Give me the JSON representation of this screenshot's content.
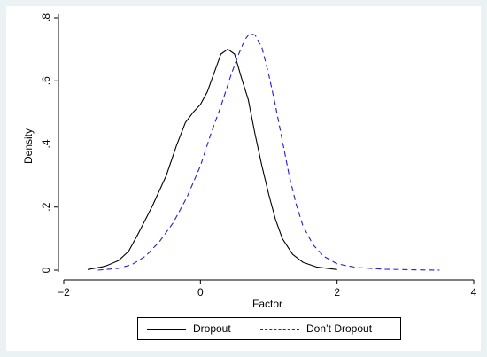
{
  "chart_data": {
    "type": "line",
    "title": "",
    "xlabel": "Factor",
    "ylabel": "Density",
    "xlim": [
      -2,
      4
    ],
    "ylim": [
      0,
      0.8
    ],
    "xticks": [
      "-2",
      "0",
      "2",
      "4"
    ],
    "yticks": [
      "0",
      ".2",
      ".4",
      ".6",
      ".8"
    ],
    "grid": false,
    "legend_position": "bottom",
    "series": [
      {
        "name": "Dropout",
        "color": "#000000",
        "style": "solid",
        "points": [
          [
            -1.65,
            0.002
          ],
          [
            -1.4,
            0.012
          ],
          [
            -1.2,
            0.03
          ],
          [
            -1.05,
            0.06
          ],
          [
            -0.9,
            0.12
          ],
          [
            -0.7,
            0.205
          ],
          [
            -0.5,
            0.3
          ],
          [
            -0.35,
            0.395
          ],
          [
            -0.22,
            0.468
          ],
          [
            -0.1,
            0.502
          ],
          [
            0.0,
            0.525
          ],
          [
            0.1,
            0.565
          ],
          [
            0.2,
            0.625
          ],
          [
            0.3,
            0.685
          ],
          [
            0.4,
            0.7
          ],
          [
            0.5,
            0.685
          ],
          [
            0.6,
            0.61
          ],
          [
            0.7,
            0.54
          ],
          [
            0.8,
            0.43
          ],
          [
            0.9,
            0.33
          ],
          [
            1.0,
            0.24
          ],
          [
            1.1,
            0.16
          ],
          [
            1.2,
            0.1
          ],
          [
            1.35,
            0.05
          ],
          [
            1.5,
            0.025
          ],
          [
            1.7,
            0.01
          ],
          [
            2.0,
            0.002
          ]
        ]
      },
      {
        "name": "Don’t Dropout",
        "color": "#1f1fd6",
        "style": "dashed",
        "points": [
          [
            -1.5,
            0.0
          ],
          [
            -1.2,
            0.006
          ],
          [
            -1.0,
            0.018
          ],
          [
            -0.8,
            0.045
          ],
          [
            -0.6,
            0.09
          ],
          [
            -0.4,
            0.15
          ],
          [
            -0.2,
            0.23
          ],
          [
            0.0,
            0.33
          ],
          [
            0.15,
            0.43
          ],
          [
            0.3,
            0.52
          ],
          [
            0.45,
            0.62
          ],
          [
            0.55,
            0.68
          ],
          [
            0.65,
            0.73
          ],
          [
            0.72,
            0.75
          ],
          [
            0.8,
            0.745
          ],
          [
            0.9,
            0.705
          ],
          [
            1.0,
            0.62
          ],
          [
            1.1,
            0.52
          ],
          [
            1.2,
            0.41
          ],
          [
            1.3,
            0.3
          ],
          [
            1.4,
            0.21
          ],
          [
            1.5,
            0.14
          ],
          [
            1.65,
            0.08
          ],
          [
            1.8,
            0.045
          ],
          [
            2.0,
            0.02
          ],
          [
            2.3,
            0.008
          ],
          [
            2.7,
            0.003
          ],
          [
            3.1,
            0.001
          ],
          [
            3.5,
            0.0
          ]
        ]
      }
    ]
  }
}
